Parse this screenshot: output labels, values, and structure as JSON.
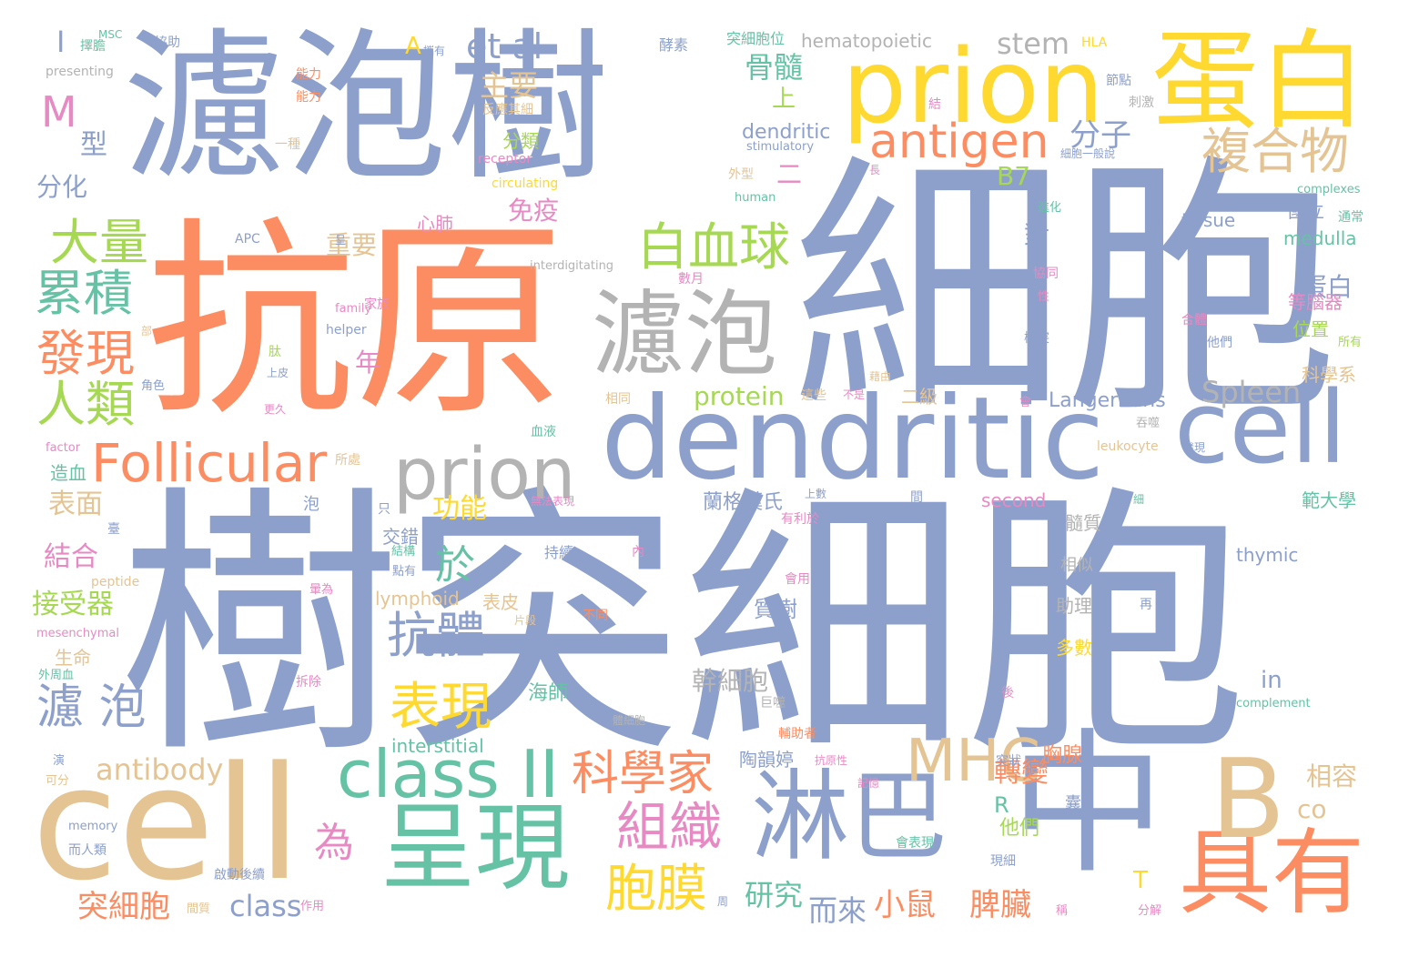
{
  "palette": {
    "blue": "#8da0cb",
    "orange": "#fc8d62",
    "green": "#66c2a5",
    "yellow": "#ffd92f",
    "lime": "#a6d854",
    "tan": "#e5c494",
    "pink": "#e78ac3",
    "gray": "#b3b3b3"
  },
  "words": [
    {
      "text": "細胞",
      "color": "#8da0cb"
    },
    {
      "text": "樹突細胞",
      "color": "#8da0cb"
    },
    {
      "text": "抗原",
      "color": "#fc8d62"
    },
    {
      "text": "濾泡樹",
      "color": "#8da0cb"
    },
    {
      "text": "中",
      "color": "#8da0cb"
    },
    {
      "text": "cell",
      "color": "#e5c494"
    },
    {
      "text": "dendritic",
      "color": "#8da0cb"
    },
    {
      "text": "cell",
      "color": "#8da0cb"
    },
    {
      "text": "prion",
      "color": "#ffd92f"
    },
    {
      "text": "蛋白",
      "color": "#ffd92f"
    },
    {
      "text": "呈現",
      "color": "#66c2a5"
    },
    {
      "text": "具有",
      "color": "#fc8d62"
    },
    {
      "text": "淋巴",
      "color": "#8da0cb"
    },
    {
      "text": "B",
      "color": "#e5c494"
    },
    {
      "text": "濾泡",
      "color": "#b3b3b3"
    },
    {
      "text": "prion",
      "color": "#b3b3b3"
    },
    {
      "text": "class II",
      "color": "#66c2a5"
    },
    {
      "text": "Follicular",
      "color": "#fc8d62"
    },
    {
      "text": "MHC",
      "color": "#e5c494"
    },
    {
      "text": "antigen",
      "color": "#fc8d62"
    },
    {
      "text": "白血球",
      "color": "#a6d854"
    },
    {
      "text": "複合物",
      "color": "#e5c494"
    },
    {
      "text": "大量",
      "color": "#a6d854"
    },
    {
      "text": "累積",
      "color": "#66c2a5"
    },
    {
      "text": "發現",
      "color": "#fc8d62"
    },
    {
      "text": "人類",
      "color": "#a6d854"
    },
    {
      "text": "科學家",
      "color": "#fc8d62"
    },
    {
      "text": "組織",
      "color": "#e78ac3"
    },
    {
      "text": "表現",
      "color": "#ffd92f"
    },
    {
      "text": "胞膜",
      "color": "#ffd92f"
    },
    {
      "text": "抗體",
      "color": "#8da0cb"
    },
    {
      "text": "濾 泡",
      "color": "#8da0cb"
    },
    {
      "text": "M",
      "color": "#e78ac3"
    },
    {
      "text": "et al",
      "color": "#8da0cb"
    },
    {
      "text": "stem",
      "color": "#b3b3b3"
    },
    {
      "text": "Spleen",
      "color": "#b3b3b3"
    },
    {
      "text": "為",
      "color": "#e78ac3"
    },
    {
      "text": "於",
      "color": "#66c2a5"
    },
    {
      "text": "主要",
      "color": "#e5c494"
    },
    {
      "text": "骨髓",
      "color": "#66c2a5"
    },
    {
      "text": "分子",
      "color": "#8da0cb"
    },
    {
      "text": "antibody",
      "color": "#e5c494"
    },
    {
      "text": "突細胞",
      "color": "#fc8d62"
    },
    {
      "text": "class",
      "color": "#8da0cb"
    },
    {
      "text": "小鼠",
      "color": "#fc8d62"
    },
    {
      "text": "脾臟",
      "color": "#fc8d62"
    },
    {
      "text": "而來",
      "color": "#8da0cb"
    },
    {
      "text": "研究",
      "color": "#66c2a5"
    },
    {
      "text": "轉變",
      "color": "#fc8d62"
    },
    {
      "text": "幹細胞",
      "color": "#b3b3b3"
    },
    {
      "text": "功能",
      "color": "#ffd92f"
    },
    {
      "text": "結合",
      "color": "#e78ac3"
    },
    {
      "text": "接受器",
      "color": "#a6d854"
    },
    {
      "text": "表面",
      "color": "#e5c494"
    },
    {
      "text": "型",
      "color": "#8da0cb"
    },
    {
      "text": "分化",
      "color": "#8da0cb"
    },
    {
      "text": "B7",
      "color": "#a6d854"
    },
    {
      "text": "免疫",
      "color": "#e78ac3"
    },
    {
      "text": "重要",
      "color": "#e5c494"
    },
    {
      "text": "年",
      "color": "#e78ac3"
    },
    {
      "text": "protein",
      "color": "#a6d854"
    },
    {
      "text": "Langerhans",
      "color": "#8da0cb"
    },
    {
      "text": "相容",
      "color": "#e5c494"
    },
    {
      "text": "co",
      "color": "#e5c494"
    },
    {
      "text": "interstitial",
      "color": "#66c2a5"
    },
    {
      "text": "hematopoietic",
      "color": "#b3b3b3"
    },
    {
      "text": "dendritic",
      "color": "#8da0cb"
    },
    {
      "text": "medulla",
      "color": "#66c2a5"
    },
    {
      "text": "tissue",
      "color": "#8da0cb"
    },
    {
      "text": "thymic",
      "color": "#8da0cb"
    },
    {
      "text": "second",
      "color": "#e78ac3"
    },
    {
      "text": "lymphoid",
      "color": "#e5c494"
    },
    {
      "text": "蛋白",
      "color": "#8da0cb"
    },
    {
      "text": "對",
      "color": "#8da0cb"
    },
    {
      "text": "上",
      "color": "#a6d854"
    },
    {
      "text": "二",
      "color": "#e78ac3"
    },
    {
      "text": "T",
      "color": "#ffd92f"
    },
    {
      "text": "R",
      "color": "#66c2a5"
    },
    {
      "text": "A",
      "color": "#ffd92f"
    },
    {
      "text": "I",
      "color": "#8da0cb"
    },
    {
      "text": "in",
      "color": "#8da0cb"
    },
    {
      "text": "分類",
      "color": "#a6d854"
    },
    {
      "text": "心肺",
      "color": "#e78ac3"
    },
    {
      "text": "蘭格漢氏",
      "color": "#8da0cb"
    },
    {
      "text": "交錯",
      "color": "#8da0cb"
    },
    {
      "text": "表皮",
      "color": "#e5c494"
    },
    {
      "text": "質樹",
      "color": "#8da0cb"
    },
    {
      "text": "陶韻婷",
      "color": "#8da0cb"
    },
    {
      "text": "海師",
      "color": "#66c2a5"
    },
    {
      "text": "胸腺",
      "color": "#fc8d62"
    },
    {
      "text": "他們",
      "color": "#a6d854"
    },
    {
      "text": "國立",
      "color": "#8da0cb"
    },
    {
      "text": "等腦器",
      "color": "#e78ac3"
    },
    {
      "text": "位置",
      "color": "#a6d854"
    },
    {
      "text": "科學系",
      "color": "#e5c494"
    },
    {
      "text": "範大學",
      "color": "#66c2a5"
    },
    {
      "text": "髓質",
      "color": "#b3b3b3"
    },
    {
      "text": "相似",
      "color": "#b3b3b3"
    },
    {
      "text": "助理",
      "color": "#b3b3b3"
    },
    {
      "text": "多數",
      "color": "#ffd92f"
    },
    {
      "text": "二級",
      "color": "#e5c494"
    },
    {
      "text": "造血",
      "color": "#66c2a5"
    },
    {
      "text": "生命",
      "color": "#e5c494"
    },
    {
      "text": "leukocyte",
      "color": "#e5c494"
    },
    {
      "text": "complexes",
      "color": "#66c2a5"
    },
    {
      "text": "complement",
      "color": "#66c2a5"
    },
    {
      "text": "peptide",
      "color": "#e5c494"
    },
    {
      "text": "mesenchymal",
      "color": "#e78ac3"
    },
    {
      "text": "memory",
      "color": "#8da0cb"
    },
    {
      "text": "factor",
      "color": "#e78ac3"
    },
    {
      "text": "family",
      "color": "#e78ac3"
    },
    {
      "text": "helper",
      "color": "#8da0cb"
    },
    {
      "text": "human",
      "color": "#66c2a5"
    },
    {
      "text": "circulating",
      "color": "#ffd92f"
    },
    {
      "text": "receptor",
      "color": "#e78ac3"
    },
    {
      "text": "stimulatory",
      "color": "#8da0cb"
    },
    {
      "text": "interdigitating",
      "color": "#b3b3b3"
    },
    {
      "text": "presenting",
      "color": "#b3b3b3"
    },
    {
      "text": "APC",
      "color": "#8da0cb"
    },
    {
      "text": "MSC",
      "color": "#66c2a5"
    },
    {
      "text": "HLA",
      "color": "#ffd92f"
    },
    {
      "text": "突細胞位",
      "color": "#66c2a5"
    },
    {
      "text": "酵素",
      "color": "#8da0cb"
    },
    {
      "text": "能力",
      "color": "#fc8d62"
    },
    {
      "text": "一種",
      "color": "#e5c494"
    },
    {
      "text": "外型",
      "color": "#e5c494"
    },
    {
      "text": "節點",
      "color": "#8da0cb"
    },
    {
      "text": "刺激",
      "color": "#b3b3b3"
    },
    {
      "text": "通常",
      "color": "#66c2a5"
    },
    {
      "text": "所有",
      "color": "#a6d854"
    },
    {
      "text": "當他們",
      "color": "#8da0cb"
    },
    {
      "text": "樹突",
      "color": "#8da0cb"
    },
    {
      "text": "協助",
      "color": "#8da0cb"
    },
    {
      "text": "擇膽",
      "color": "#66c2a5"
    },
    {
      "text": "攜有",
      "color": "#8da0cb"
    },
    {
      "text": "反應其細",
      "color": "#e5c494"
    },
    {
      "text": "能力",
      "color": "#fc8d62"
    },
    {
      "text": "呈",
      "color": "#8da0cb"
    },
    {
      "text": "家族",
      "color": "#e78ac3"
    },
    {
      "text": "部",
      "color": "#e5c494"
    },
    {
      "text": "角色",
      "color": "#8da0cb"
    },
    {
      "text": "上皮",
      "color": "#8da0cb"
    },
    {
      "text": "更久",
      "color": "#e78ac3"
    },
    {
      "text": "所處",
      "color": "#e5c494"
    },
    {
      "text": "泡",
      "color": "#8da0cb"
    },
    {
      "text": "只",
      "color": "#8da0cb"
    },
    {
      "text": "臺",
      "color": "#8da0cb"
    },
    {
      "text": "血液",
      "color": "#66c2a5"
    },
    {
      "text": "無法表現",
      "color": "#e78ac3"
    },
    {
      "text": "相同",
      "color": "#e5c494"
    },
    {
      "text": "這些",
      "color": "#e5c494"
    },
    {
      "text": "不是",
      "color": "#e78ac3"
    },
    {
      "text": "上數",
      "color": "#8da0cb"
    },
    {
      "text": "間",
      "color": "#8da0cb"
    },
    {
      "text": "有利於",
      "color": "#e78ac3"
    },
    {
      "text": "持續",
      "color": "#8da0cb"
    },
    {
      "text": "內",
      "color": "#e78ac3"
    },
    {
      "text": "不同",
      "color": "#fc8d62"
    },
    {
      "text": "片段",
      "color": "#e5c494"
    },
    {
      "text": "體細胞",
      "color": "#b3b3b3"
    },
    {
      "text": "輔助者",
      "color": "#fc8d62"
    },
    {
      "text": "抗原性",
      "color": "#e78ac3"
    },
    {
      "text": "巨噬",
      "color": "#b3b3b3"
    },
    {
      "text": "會用",
      "color": "#e78ac3"
    },
    {
      "text": "記憶",
      "color": "#e78ac3"
    },
    {
      "text": "突狀",
      "color": "#8da0cb"
    },
    {
      "text": "囊",
      "color": "#8da0cb"
    },
    {
      "text": "現細",
      "color": "#8da0cb"
    },
    {
      "text": "會表現",
      "color": "#66c2a5"
    },
    {
      "text": "後",
      "color": "#e78ac3"
    },
    {
      "text": "再",
      "color": "#8da0cb"
    },
    {
      "text": "細",
      "color": "#66c2a5"
    },
    {
      "text": "分解",
      "color": "#e78ac3"
    },
    {
      "text": "稱",
      "color": "#e78ac3"
    },
    {
      "text": "周",
      "color": "#8da0cb"
    },
    {
      "text": "啟動後續",
      "color": "#8da0cb"
    },
    {
      "text": "而人類",
      "color": "#8da0cb"
    },
    {
      "text": "作用",
      "color": "#e78ac3"
    },
    {
      "text": "間質",
      "color": "#e5c494"
    },
    {
      "text": "外周血",
      "color": "#66c2a5"
    },
    {
      "text": "拆除",
      "color": "#e78ac3"
    },
    {
      "text": "可分",
      "color": "#e5c494"
    },
    {
      "text": "演",
      "color": "#8da0cb"
    },
    {
      "text": "暈為",
      "color": "#e78ac3"
    },
    {
      "text": "肽",
      "color": "#a6d854"
    },
    {
      "text": "進化",
      "color": "#66c2a5"
    },
    {
      "text": "協同",
      "color": "#e78ac3"
    },
    {
      "text": "性",
      "color": "#e78ac3"
    },
    {
      "text": "結",
      "color": "#e78ac3"
    },
    {
      "text": "長",
      "color": "#e78ac3"
    },
    {
      "text": "數月",
      "color": "#e78ac3"
    },
    {
      "text": "藉由",
      "color": "#e5c494"
    },
    {
      "text": "會",
      "color": "#e78ac3"
    },
    {
      "text": "吞噬",
      "color": "#b3b3b3"
    },
    {
      "text": "發現",
      "color": "#8da0cb"
    },
    {
      "text": "合體",
      "color": "#e78ac3"
    },
    {
      "text": "結構",
      "color": "#66c2a5"
    },
    {
      "text": "點有",
      "color": "#8da0cb"
    },
    {
      "text": "細胞一般說",
      "color": "#8da0cb"
    }
  ]
}
